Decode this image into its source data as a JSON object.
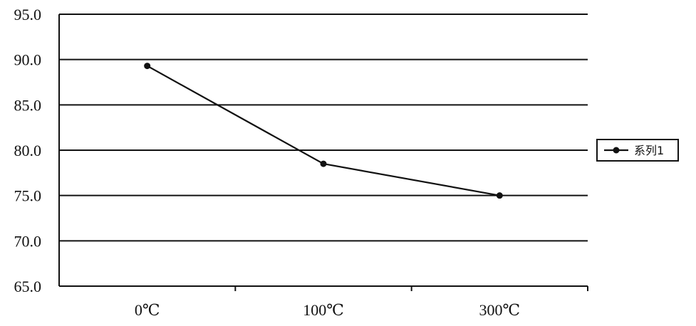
{
  "chart_data": {
    "type": "line",
    "title": "",
    "xlabel": "",
    "ylabel": "",
    "categories": [
      "0℃",
      "100℃",
      "300℃"
    ],
    "series": [
      {
        "name": "系列1",
        "values": [
          89.3,
          78.5,
          75.0
        ]
      }
    ],
    "ylim": [
      65.0,
      95.0
    ],
    "yticks": [
      65.0,
      70.0,
      75.0,
      80.0,
      85.0,
      90.0,
      95.0
    ],
    "ytick_labels": [
      "65.0",
      "70.0",
      "75.0",
      "80.0",
      "85.0",
      "90.0",
      "95.0"
    ],
    "grid": "horizontal",
    "legend_position": "right",
    "colors": {
      "line": "#111111",
      "grid": "#111111",
      "axis": "#111111"
    }
  }
}
